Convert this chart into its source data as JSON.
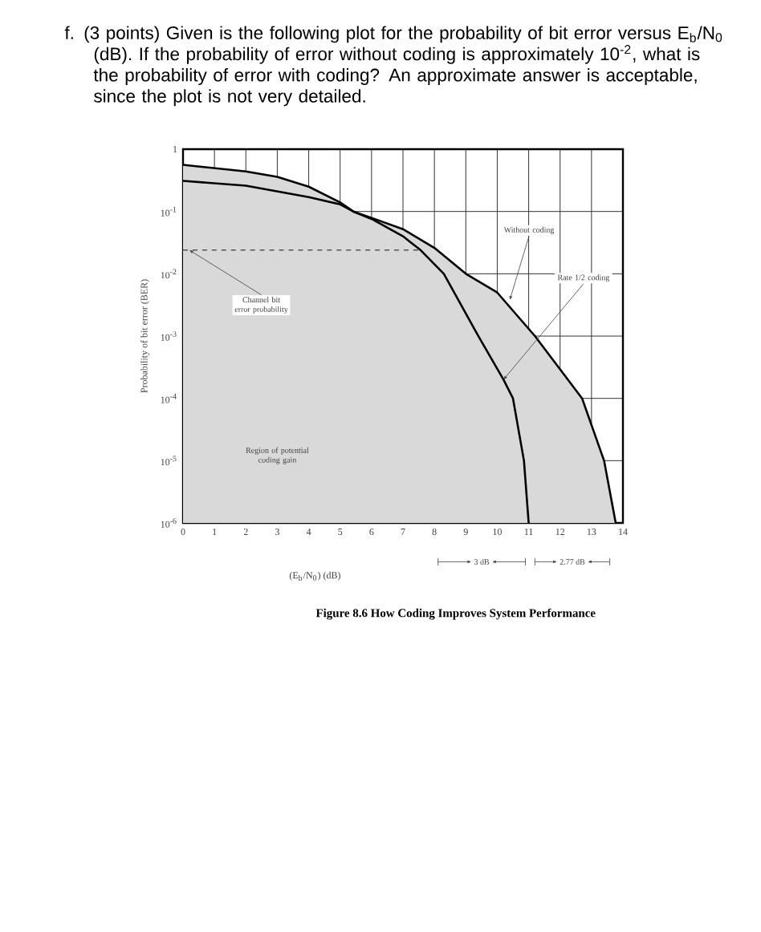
{
  "chart_data": {
    "type": "area",
    "title": "f. (3 points) Given is the following plot for the probability of bit error versus E$_{b}$/N$_{0}$ (dB). If the probability of error without coding is approximately 10$^{-2}$, what is the probability of error with coding? An approximate answer is acceptable, since the plot is not very detailed.",
    "xlabel": "(E$_{b}$/N$_{0}$) (dB)",
    "ylabel": "Probability of bit error (BER)",
    "log": "y",
    "grid": true,
    "marker": "none",
    "xlim": [
      0,
      14
    ],
    "ylim": [
      1e-06,
      1
    ],
    "xticks": [
      0,
      1,
      2,
      3,
      4,
      5,
      6,
      7,
      8,
      9,
      10,
      11,
      12,
      13,
      14
    ],
    "yticks": [
      {
        "value": 1e-06,
        "label": "10$^{-6}$"
      },
      {
        "value": 1e-05,
        "label": "10$^{-5}$"
      },
      {
        "value": 0.0001,
        "label": "10$^{-4}$"
      },
      {
        "value": 0.001,
        "label": "10$^{-3}$"
      },
      {
        "value": 0.01,
        "label": "10$^{-2}$"
      },
      {
        "value": 0.1,
        "label": "10$^{-1}$"
      },
      {
        "value": 1,
        "label": "1"
      }
    ],
    "series": [
      {
        "color": "#d9d9d9",
        "x": [
          0,
          2,
          4,
          5,
          5.42,
          6,
          7,
          8,
          9,
          10,
          11.2,
          12.7,
          13.4,
          13.77
        ],
        "values": [
          0.31,
          0.26,
          0.17,
          0.13,
          0.1,
          0.079,
          0.052,
          0.026,
          0.01,
          0.005,
          0.001,
          0.0001,
          1e-05,
          1e-06
        ]
      },
      {
        "color": "#d9d9d9",
        "x": [
          0,
          2,
          3,
          4,
          5,
          5.42,
          6,
          7,
          7.56,
          8.3,
          9.4,
          10.2,
          10.5,
          10.85,
          11
        ],
        "values": [
          0.56,
          0.44,
          0.36,
          0.25,
          0.14,
          0.1,
          0.076,
          0.04,
          0.024,
          0.01,
          0.001,
          0.0002,
          0.0001,
          1e-05,
          1e-06
        ]
      },
      {
        "type": "line",
        "line_style": "dashed",
        "color": "#555555",
        "x": [
          0,
          7.56
        ],
        "values": [
          0.024,
          0.024
        ]
      }
    ],
    "annotations": [
      {
        "text": "Channel bit error probability",
        "x": 0.2,
        "y": 0.024
      },
      {
        "text": "Without coding",
        "x": 10.4,
        "y": 0.0038
      },
      {
        "text": "Rate 1/2 coding",
        "x": 10.2,
        "y": 0.0002
      },
      "Region of potential coding gain",
      "3 dB",
      "2.77 dB",
      "Figure 8.6 How Coding Improves System Performance"
    ]
  }
}
